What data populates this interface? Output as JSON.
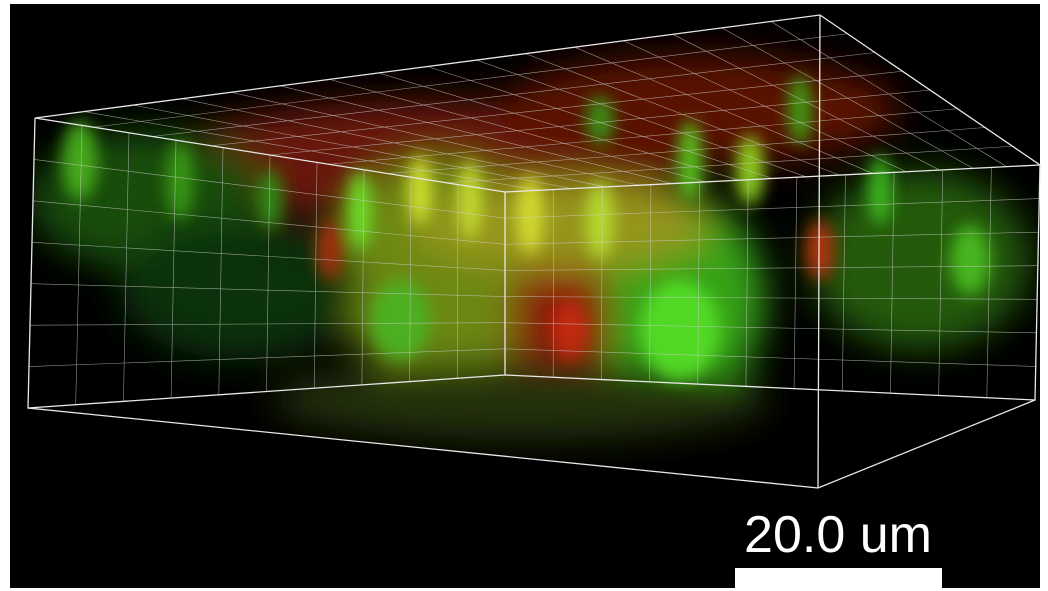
{
  "scale_bar": {
    "label": "20.0 um"
  }
}
